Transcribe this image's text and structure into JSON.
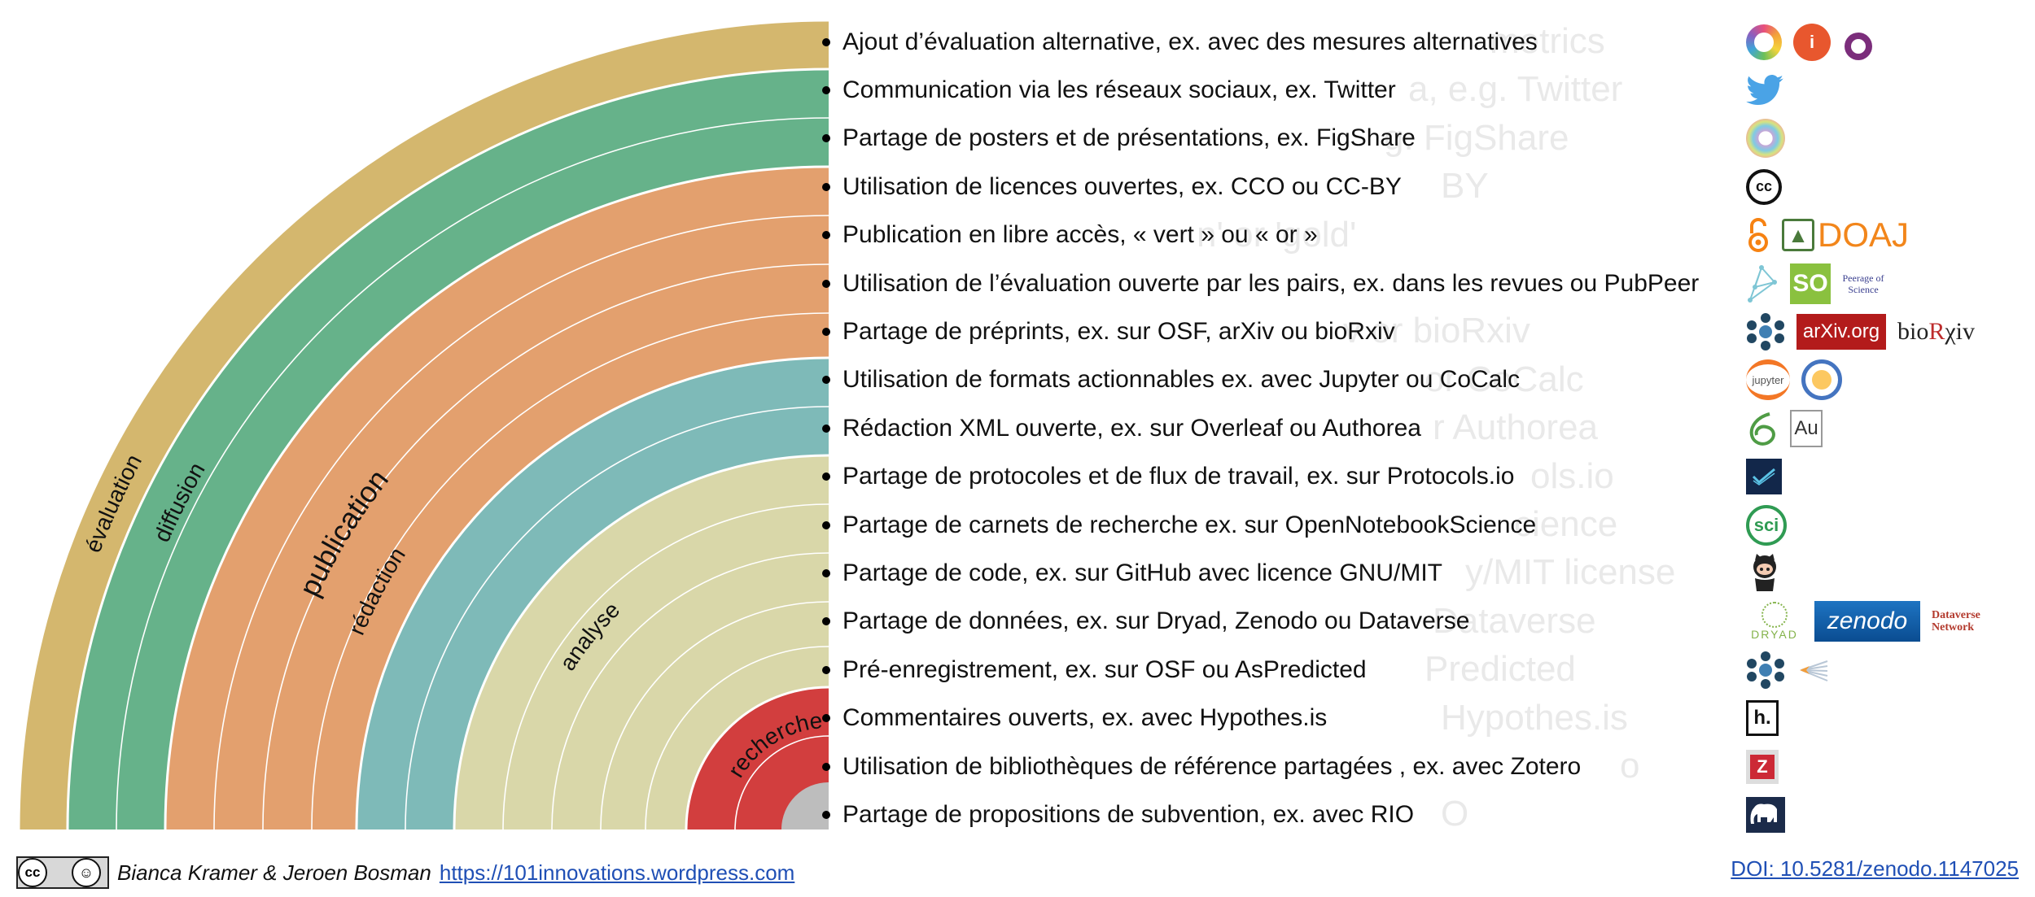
{
  "diagram": {
    "stages": [
      {
        "label": "évaluation",
        "color": "#d4b76e"
      },
      {
        "label": "diffusion",
        "color": "#66b28a"
      },
      {
        "label": "publication",
        "color": "#e3a06e"
      },
      {
        "label": "rédaction",
        "color": "#7ebab8"
      },
      {
        "label": "analyse",
        "color": "#d9d7a9"
      },
      {
        "label": "recherche",
        "color": "#d23e3e"
      }
    ],
    "center_color": "#bdbdbd"
  },
  "items": [
    {
      "text": "Ajout d’évaluation alternative, ex. avec des mesures alternatives",
      "icons": [
        "altmetric-icon",
        "impactstory-icon",
        "plumx-icon"
      ]
    },
    {
      "text": "Communication via les réseaux sociaux, ex. Twitter",
      "icons": [
        "twitter-icon"
      ]
    },
    {
      "text": "Partage de posters et de présentations, ex. FigShare",
      "icons": [
        "figshare-icon"
      ]
    },
    {
      "text": "Utilisation de licences ouvertes, ex. CCO ou CC-BY",
      "icons": [
        "creative-commons-icon"
      ]
    },
    {
      "text": "Publication en libre accès, « vert » ou « or »",
      "icons": [
        "open-access-icon",
        "doaj-logo"
      ]
    },
    {
      "text": "Utilisation de l’évaluation ouverte par les pairs, ex. dans les revues ou PubPeer",
      "icons": [
        "pubpeer-icon",
        "scienceopen-icon",
        "peerage-of-science-logo"
      ]
    },
    {
      "text": "Partage de préprints, ex. sur OSF, arXiv ou bioRxiv",
      "icons": [
        "osf-icon",
        "arxiv-logo",
        "biorxiv-logo"
      ]
    },
    {
      "text": "Utilisation de formats actionnables ex. avec Jupyter ou CoCalc",
      "icons": [
        "jupyter-icon",
        "cocalc-icon"
      ]
    },
    {
      "text": "Rédaction XML ouverte, ex. sur Overleaf ou Authorea",
      "icons": [
        "overleaf-icon",
        "authorea-icon"
      ]
    },
    {
      "text": "Partage de protocoles et de flux de travail, ex. sur Protocols.io",
      "icons": [
        "protocols-io-icon"
      ]
    },
    {
      "text": "Partage de carnets de recherche ex. sur OpenNotebookScience",
      "icons": [
        "open-notebook-science-icon"
      ]
    },
    {
      "text": "Partage de code, ex. sur GitHub avec licence GNU/MIT",
      "icons": [
        "github-octocat-icon"
      ]
    },
    {
      "text": "Partage de données, ex. sur Dryad, Zenodo ou Dataverse",
      "icons": [
        "dryad-logo",
        "zenodo-logo",
        "dataverse-logo"
      ]
    },
    {
      "text": "Pré-enregistrement, ex. sur OSF ou AsPredicted",
      "icons": [
        "osf-icon",
        "aspredicted-icon"
      ]
    },
    {
      "text": "Commentaires ouverts, ex. avec Hypothes.is",
      "icons": [
        "hypothesis-icon"
      ]
    },
    {
      "text": "Utilisation de bibliothèques de référence partagées , ex. avec Zotero",
      "icons": [
        "zotero-icon"
      ]
    },
    {
      "text": "Partage de propositions de subvention, ex. avec RIO",
      "icons": [
        "rio-journal-icon"
      ]
    }
  ],
  "logos": {
    "doaj": "DOAJ",
    "scienceopen": "SO",
    "peerage": "Peerage of Science",
    "arxiv": "arXiv.org",
    "biorxiv_a": "bio",
    "biorxiv_r": "R",
    "biorxiv_b": "χiv",
    "jupyter": "jupyter",
    "authorea": "Au",
    "sci": "sci",
    "dryad": "DRYAD",
    "zenodo": "zenodo",
    "dataverse": "Dataverse Network",
    "hypothesis": "h.",
    "zotero": "Z",
    "cc": "cc"
  },
  "ghost_text": [
    "metrics",
    "a, e.g. Twitter",
    "g. FigShare",
    "BY",
    "n' or 'gold'",
    "v or bioRxiv",
    "or CoCalc",
    "r Authorea",
    "ols.io",
    "cience",
    "y/MIT license",
    "Dataverse",
    "Predicted",
    "Hypothes.is",
    "o",
    "O"
  ],
  "footer": {
    "cc_badge": "cc BY",
    "authors": "Bianca Kramer & Jeroen Bosman",
    "url": "https://101innovations.wordpress.com",
    "doi": "DOI: 10.5281/zenodo.1147025"
  }
}
